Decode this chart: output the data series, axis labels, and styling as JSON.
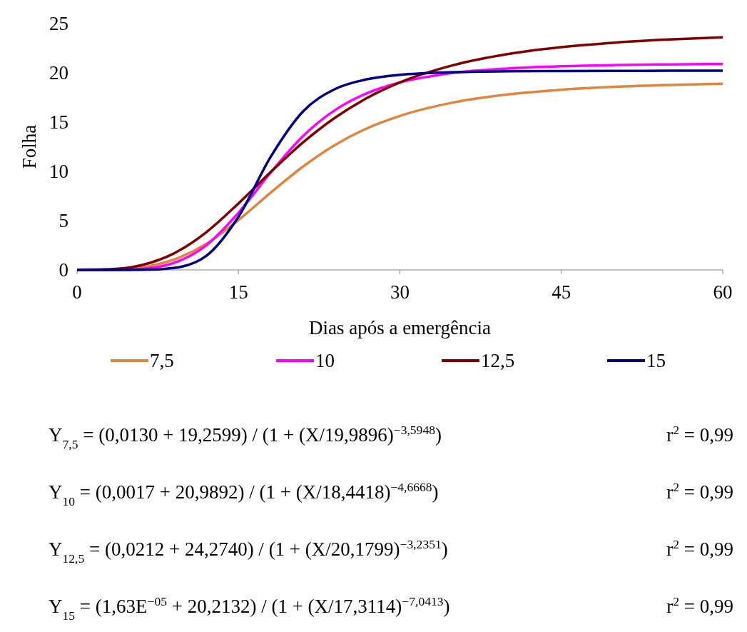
{
  "chart_data": {
    "type": "line",
    "xlabel": "Dias após a emergência",
    "ylabel": "Folha",
    "x": [
      0,
      3,
      6,
      9,
      12,
      15,
      18,
      21,
      24,
      27,
      30,
      35,
      40,
      45,
      50,
      55,
      60
    ],
    "series": [
      {
        "name": "7,5",
        "color": "#e0853d",
        "values": [
          0.01,
          0.03,
          0.26,
          1.05,
          2.65,
          5.06,
          7.85,
          10.49,
          12.7,
          14.4,
          15.63,
          17.0,
          17.81,
          18.28,
          18.58,
          18.77,
          18.9
        ]
      },
      {
        "name": "10",
        "color": "#ff00ff",
        "values": [
          0.0,
          0.0,
          0.11,
          0.71,
          2.49,
          5.8,
          9.9,
          13.59,
          16.24,
          17.96,
          19.02,
          19.99,
          20.44,
          20.67,
          20.79,
          20.86,
          20.9
        ]
      },
      {
        "name": "12,5",
        "color": "#800000",
        "values": [
          0.02,
          0.07,
          0.49,
          1.68,
          3.82,
          6.75,
          9.94,
          12.94,
          15.47,
          17.48,
          19.03,
          20.79,
          21.9,
          22.61,
          23.07,
          23.38,
          23.6
        ]
      },
      {
        "name": "15",
        "color": "#000080",
        "values": [
          0.0,
          0.0,
          0.01,
          0.2,
          1.42,
          5.4,
          11.49,
          16.09,
          18.37,
          19.36,
          19.8,
          20.07,
          20.16,
          20.19,
          20.2,
          20.21,
          20.21
        ]
      }
    ],
    "xlim": [
      0,
      60
    ],
    "xticks": [
      0,
      15,
      30,
      45,
      60
    ],
    "ylim": [
      0,
      25
    ],
    "yticks": [
      0,
      5,
      10,
      15,
      20,
      25
    ],
    "legend": "bottom",
    "marker": "none",
    "line_style": "solid",
    "annotations": [
      "Y$_{7,5}$ = (0,0130 + 19,2599) / (1 + (X/19,9896)$^{−3,5948}$)",
      "r$^{2}$ = 0,99",
      "Y$_{10}$ = (0,0017 + 20,9892) / (1 + (X/18,4418)$^{−4,6668}$)",
      "r$^{2}$ = 0,99",
      "Y$_{12,5}$ = (0,0212 + 24,2740) / (1 + (X/20,1799)$^{−3,2351}$)",
      "r$^{2}$ = 0,99",
      "Y$_{15}$ = (1,63E$^{−05}$ + 20,2132) / (1 + (X/17,3114)$^{−7,0413}$)",
      "r$^{2}$ = 0,99"
    ]
  }
}
